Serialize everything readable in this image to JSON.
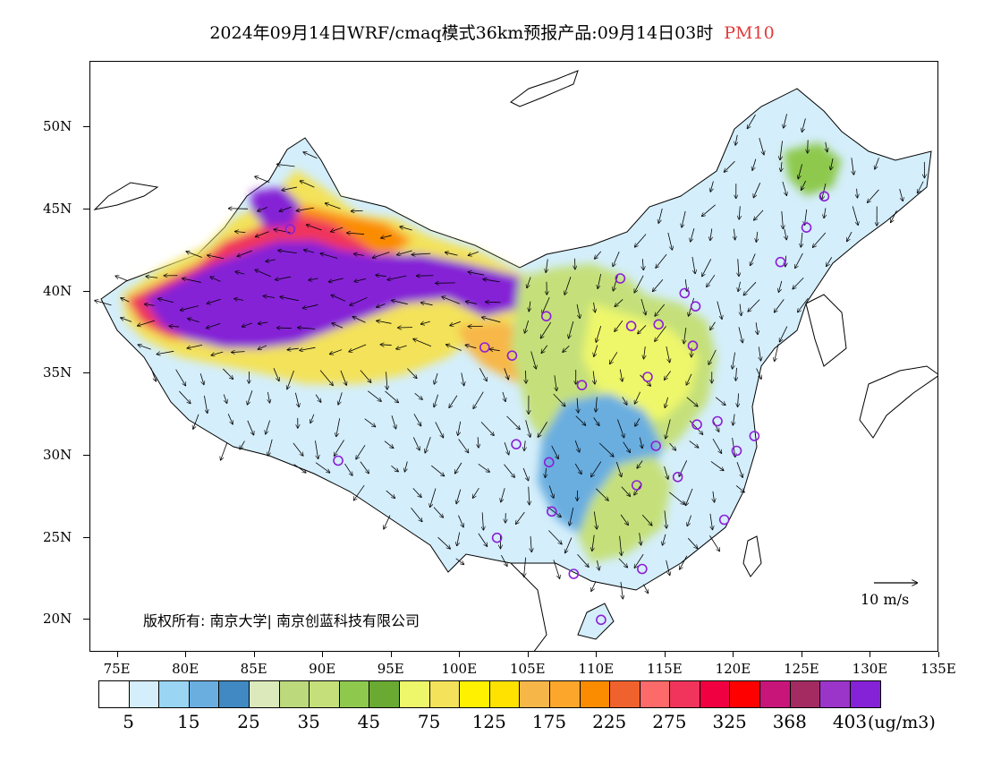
{
  "title": {
    "main": "2024年09月14日WRF/cmaq模式36km预报产品:09月14日03时",
    "species": "PM10"
  },
  "map": {
    "lat_labels": [
      "50N",
      "45N",
      "40N",
      "35N",
      "30N",
      "25N",
      "20N"
    ],
    "lat_values": [
      50,
      45,
      40,
      35,
      30,
      25,
      20
    ],
    "lon_labels": [
      "75E",
      "80E",
      "85E",
      "90E",
      "95E",
      "100E",
      "105E",
      "110E",
      "115E",
      "120E",
      "125E",
      "130E",
      "135E"
    ],
    "lon_values": [
      75,
      80,
      85,
      90,
      95,
      100,
      105,
      110,
      115,
      120,
      125,
      130,
      135
    ],
    "extent": {
      "lon_min": 73,
      "lon_max": 135,
      "lat_min": 18,
      "lat_max": 54
    },
    "wind_scale_label": "10 m/s",
    "copyright": "版权所有: 南京大学| 南京创蓝科技有限公司",
    "stations": [
      [
        87.6,
        43.8
      ],
      [
        91.1,
        29.7
      ],
      [
        101.8,
        36.6
      ],
      [
        103.8,
        36.1
      ],
      [
        106.3,
        38.5
      ],
      [
        111.7,
        40.8
      ],
      [
        112.5,
        37.9
      ],
      [
        114.5,
        38.0
      ],
      [
        116.4,
        39.9
      ],
      [
        117.2,
        39.1
      ],
      [
        117.0,
        36.7
      ],
      [
        113.7,
        34.8
      ],
      [
        108.9,
        34.3
      ],
      [
        104.1,
        30.7
      ],
      [
        106.5,
        29.6
      ],
      [
        106.7,
        26.6
      ],
      [
        102.7,
        25.0
      ],
      [
        108.3,
        22.8
      ],
      [
        113.3,
        23.1
      ],
      [
        110.3,
        20.0
      ],
      [
        112.9,
        28.2
      ],
      [
        115.9,
        28.7
      ],
      [
        114.3,
        30.6
      ],
      [
        117.3,
        31.9
      ],
      [
        118.8,
        32.1
      ],
      [
        121.5,
        31.2
      ],
      [
        120.2,
        30.3
      ],
      [
        119.3,
        26.1
      ],
      [
        123.4,
        41.8
      ],
      [
        125.3,
        43.9
      ],
      [
        126.6,
        45.8
      ]
    ]
  },
  "colorbar": {
    "colors": [
      "#ffffff",
      "#d4eefb",
      "#9ad5f4",
      "#6aaee0",
      "#4089c2",
      "#dce9bb",
      "#bcd97c",
      "#c5e07a",
      "#8ec94e",
      "#6aaa33",
      "#eef76a",
      "#f3e25a",
      "#fff100",
      "#ffe200",
      "#f7b748",
      "#fca72c",
      "#fb8c00",
      "#f0622d",
      "#fd6a6a",
      "#f0345b",
      "#f00040",
      "#ff0000",
      "#c8157a",
      "#a32b62",
      "#9b35c9",
      "#8521d6"
    ],
    "labels": [
      "5",
      "15",
      "25",
      "35",
      "45",
      "75",
      "125",
      "175",
      "225",
      "275",
      "325",
      "368",
      "403"
    ],
    "units": "(ug/m3)"
  }
}
